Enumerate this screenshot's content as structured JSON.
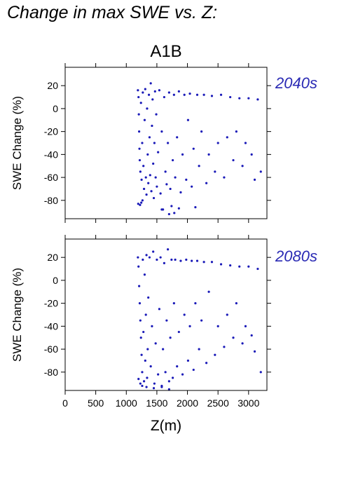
{
  "figure_title": "Change in max SWE vs. Z:",
  "scenario_label": "A1B",
  "xlabel": "Z(m)",
  "chart_data": [
    {
      "type": "scatter",
      "panel_label": "2040s",
      "ylabel": "SWE Change (%)",
      "xlim": [
        0,
        3300
      ],
      "ylim": [
        -96,
        36
      ],
      "xticks": [
        0,
        500,
        1000,
        1500,
        2000,
        2500,
        3000
      ],
      "yticks": [
        -80,
        -60,
        -40,
        -20,
        0,
        20
      ],
      "color": "#1a1ab8",
      "series": [
        {
          "points": [
            [
              1190,
              16
            ],
            [
              1200,
              10
            ],
            [
              1205,
              -5
            ],
            [
              1210,
              -20
            ],
            [
              1215,
              -35
            ],
            [
              1220,
              -45
            ],
            [
              1230,
              -55
            ],
            [
              1240,
              5
            ],
            [
              1250,
              -62
            ],
            [
              1260,
              -30
            ],
            [
              1270,
              14
            ],
            [
              1280,
              -50
            ],
            [
              1290,
              -70
            ],
            [
              1300,
              -10
            ],
            [
              1310,
              17
            ],
            [
              1320,
              -60
            ],
            [
              1330,
              -75
            ],
            [
              1340,
              0
            ],
            [
              1350,
              -40
            ],
            [
              1360,
              -65
            ],
            [
              1370,
              12
            ],
            [
              1380,
              -25
            ],
            [
              1390,
              -58
            ],
            [
              1400,
              22
            ],
            [
              1410,
              -72
            ],
            [
              1420,
              -15
            ],
            [
              1430,
              8
            ],
            [
              1440,
              -48
            ],
            [
              1450,
              -78
            ],
            [
              1460,
              -30
            ],
            [
              1470,
              15
            ],
            [
              1480,
              -60
            ],
            [
              1490,
              -5
            ],
            [
              1500,
              -68
            ],
            [
              1520,
              -38
            ],
            [
              1540,
              16
            ],
            [
              1560,
              -74
            ],
            [
              1580,
              -20
            ],
            [
              1600,
              -88
            ],
            [
              1620,
              10
            ],
            [
              1640,
              -55
            ],
            [
              1660,
              -66
            ],
            [
              1680,
              -30
            ],
            [
              1700,
              14
            ],
            [
              1720,
              -70
            ],
            [
              1740,
              -85
            ],
            [
              1760,
              -45
            ],
            [
              1780,
              12
            ],
            [
              1800,
              -60
            ],
            [
              1830,
              -25
            ],
            [
              1860,
              15
            ],
            [
              1890,
              -73
            ],
            [
              1920,
              -40
            ],
            [
              1950,
              12
            ],
            [
              1980,
              -62
            ],
            [
              2010,
              -10
            ],
            [
              2040,
              13
            ],
            [
              2070,
              -68
            ],
            [
              2100,
              -35
            ],
            [
              2130,
              -86
            ],
            [
              2160,
              12
            ],
            [
              2190,
              -50
            ],
            [
              2230,
              -20
            ],
            [
              2270,
              12
            ],
            [
              2310,
              -65
            ],
            [
              2350,
              -40
            ],
            [
              2400,
              11
            ],
            [
              2450,
              -55
            ],
            [
              2500,
              -30
            ],
            [
              2550,
              12
            ],
            [
              2600,
              -60
            ],
            [
              2650,
              -25
            ],
            [
              2700,
              10
            ],
            [
              2750,
              -45
            ],
            [
              2800,
              -20
            ],
            [
              2850,
              9
            ],
            [
              2900,
              -50
            ],
            [
              2950,
              -30
            ],
            [
              3000,
              9
            ],
            [
              3050,
              -40
            ],
            [
              3100,
              -62
            ],
            [
              3150,
              8
            ],
            [
              3200,
              -55
            ],
            [
              1195,
              -83
            ],
            [
              1225,
              -84
            ],
            [
              1245,
              -82
            ],
            [
              1265,
              -80
            ],
            [
              1580,
              -88
            ],
            [
              1860,
              -87
            ],
            [
              1700,
              -92
            ],
            [
              1785,
              -91
            ]
          ]
        }
      ]
    },
    {
      "type": "scatter",
      "panel_label": "2080s",
      "ylabel": "SWE Change (%)",
      "xlim": [
        0,
        3300
      ],
      "ylim": [
        -96,
        36
      ],
      "xticks": [
        0,
        500,
        1000,
        1500,
        2000,
        2500,
        3000
      ],
      "yticks": [
        -80,
        -60,
        -40,
        -20,
        0,
        20
      ],
      "color": "#1a1ab8",
      "series": [
        {
          "points": [
            [
              1190,
              20
            ],
            [
              1200,
              12
            ],
            [
              1210,
              -5
            ],
            [
              1220,
              -20
            ],
            [
              1230,
              -35
            ],
            [
              1240,
              -50
            ],
            [
              1250,
              -65
            ],
            [
              1260,
              -80
            ],
            [
              1270,
              18
            ],
            [
              1280,
              -45
            ],
            [
              1290,
              -88
            ],
            [
              1300,
              5
            ],
            [
              1310,
              -70
            ],
            [
              1320,
              -30
            ],
            [
              1330,
              22
            ],
            [
              1340,
              -85
            ],
            [
              1350,
              -60
            ],
            [
              1360,
              -15
            ],
            [
              1380,
              20
            ],
            [
              1400,
              -75
            ],
            [
              1420,
              -40
            ],
            [
              1440,
              25
            ],
            [
              1460,
              -90
            ],
            [
              1480,
              -55
            ],
            [
              1500,
              18
            ],
            [
              1520,
              -82
            ],
            [
              1540,
              -25
            ],
            [
              1560,
              20
            ],
            [
              1580,
              -92
            ],
            [
              1600,
              -60
            ],
            [
              1620,
              15
            ],
            [
              1640,
              -80
            ],
            [
              1660,
              -35
            ],
            [
              1680,
              27
            ],
            [
              1700,
              -88
            ],
            [
              1720,
              -50
            ],
            [
              1740,
              18
            ],
            [
              1760,
              -85
            ],
            [
              1780,
              -20
            ],
            [
              1800,
              18
            ],
            [
              1830,
              -75
            ],
            [
              1860,
              -45
            ],
            [
              1890,
              17
            ],
            [
              1920,
              -82
            ],
            [
              1950,
              -30
            ],
            [
              1980,
              18
            ],
            [
              2010,
              -70
            ],
            [
              2040,
              -40
            ],
            [
              2070,
              17
            ],
            [
              2100,
              -78
            ],
            [
              2130,
              -20
            ],
            [
              2160,
              17
            ],
            [
              2190,
              -60
            ],
            [
              2230,
              -35
            ],
            [
              2270,
              16
            ],
            [
              2310,
              -72
            ],
            [
              2350,
              -10
            ],
            [
              2400,
              16
            ],
            [
              2450,
              -65
            ],
            [
              2500,
              -40
            ],
            [
              2550,
              14
            ],
            [
              2600,
              -58
            ],
            [
              2650,
              -30
            ],
            [
              2700,
              13
            ],
            [
              2750,
              -50
            ],
            [
              2800,
              -20
            ],
            [
              2850,
              12
            ],
            [
              2900,
              -55
            ],
            [
              2950,
              -40
            ],
            [
              3000,
              12
            ],
            [
              3050,
              -48
            ],
            [
              3100,
              -62
            ],
            [
              3150,
              10
            ],
            [
              3200,
              -80
            ],
            [
              1200,
              -86
            ],
            [
              1230,
              -90
            ],
            [
              1260,
              -92
            ],
            [
              1330,
              -93
            ],
            [
              1450,
              -94
            ],
            [
              1700,
              -95
            ],
            [
              1580,
              -93
            ]
          ]
        }
      ]
    }
  ]
}
